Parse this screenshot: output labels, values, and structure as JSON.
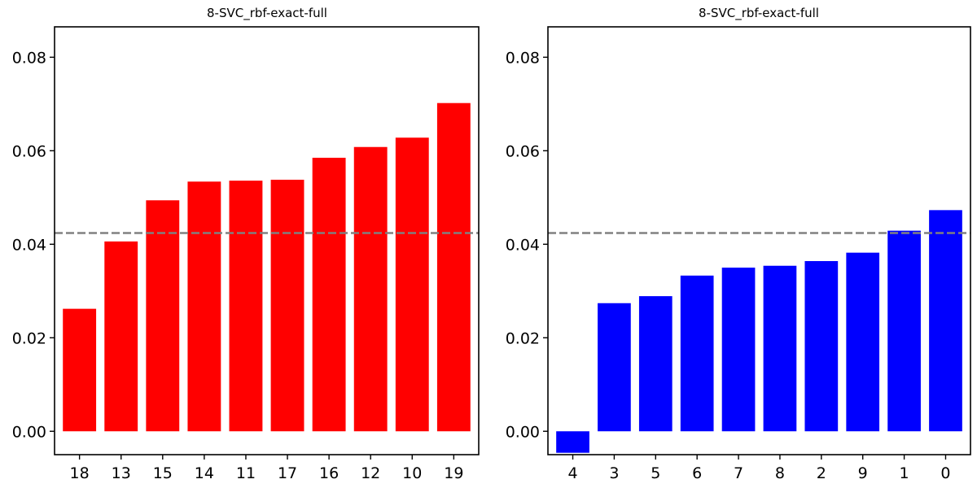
{
  "chart_data": [
    {
      "type": "bar",
      "title": "8-SVC_rbf-exact-full",
      "categories": [
        "18",
        "13",
        "15",
        "14",
        "11",
        "17",
        "16",
        "12",
        "10",
        "19"
      ],
      "values": [
        0.0262,
        0.0406,
        0.0494,
        0.0534,
        0.0536,
        0.0538,
        0.0585,
        0.0608,
        0.0628,
        0.0702
      ],
      "bar_color": "#ff0000",
      "reference_line": {
        "value": 0.0424,
        "color": "#808080",
        "style": "dashed"
      },
      "ylim": [
        -0.005,
        0.0865
      ],
      "yticks": [
        "0.00",
        "0.02",
        "0.04",
        "0.06",
        "0.08"
      ],
      "xlabel": "",
      "ylabel": "",
      "grid": false
    },
    {
      "type": "bar",
      "title": "8-SVC_rbf-exact-full",
      "categories": [
        "4",
        "3",
        "5",
        "6",
        "7",
        "8",
        "2",
        "9",
        "1",
        "0"
      ],
      "values": [
        -0.0046,
        0.0274,
        0.0289,
        0.0333,
        0.035,
        0.0354,
        0.0364,
        0.0382,
        0.0429,
        0.0473
      ],
      "bar_color": "#0000ff",
      "reference_line": {
        "value": 0.0424,
        "color": "#808080",
        "style": "dashed"
      },
      "ylim": [
        -0.005,
        0.0865
      ],
      "yticks": [
        "0.00",
        "0.02",
        "0.04",
        "0.06",
        "0.08"
      ],
      "xlabel": "",
      "ylabel": "",
      "grid": false
    }
  ]
}
